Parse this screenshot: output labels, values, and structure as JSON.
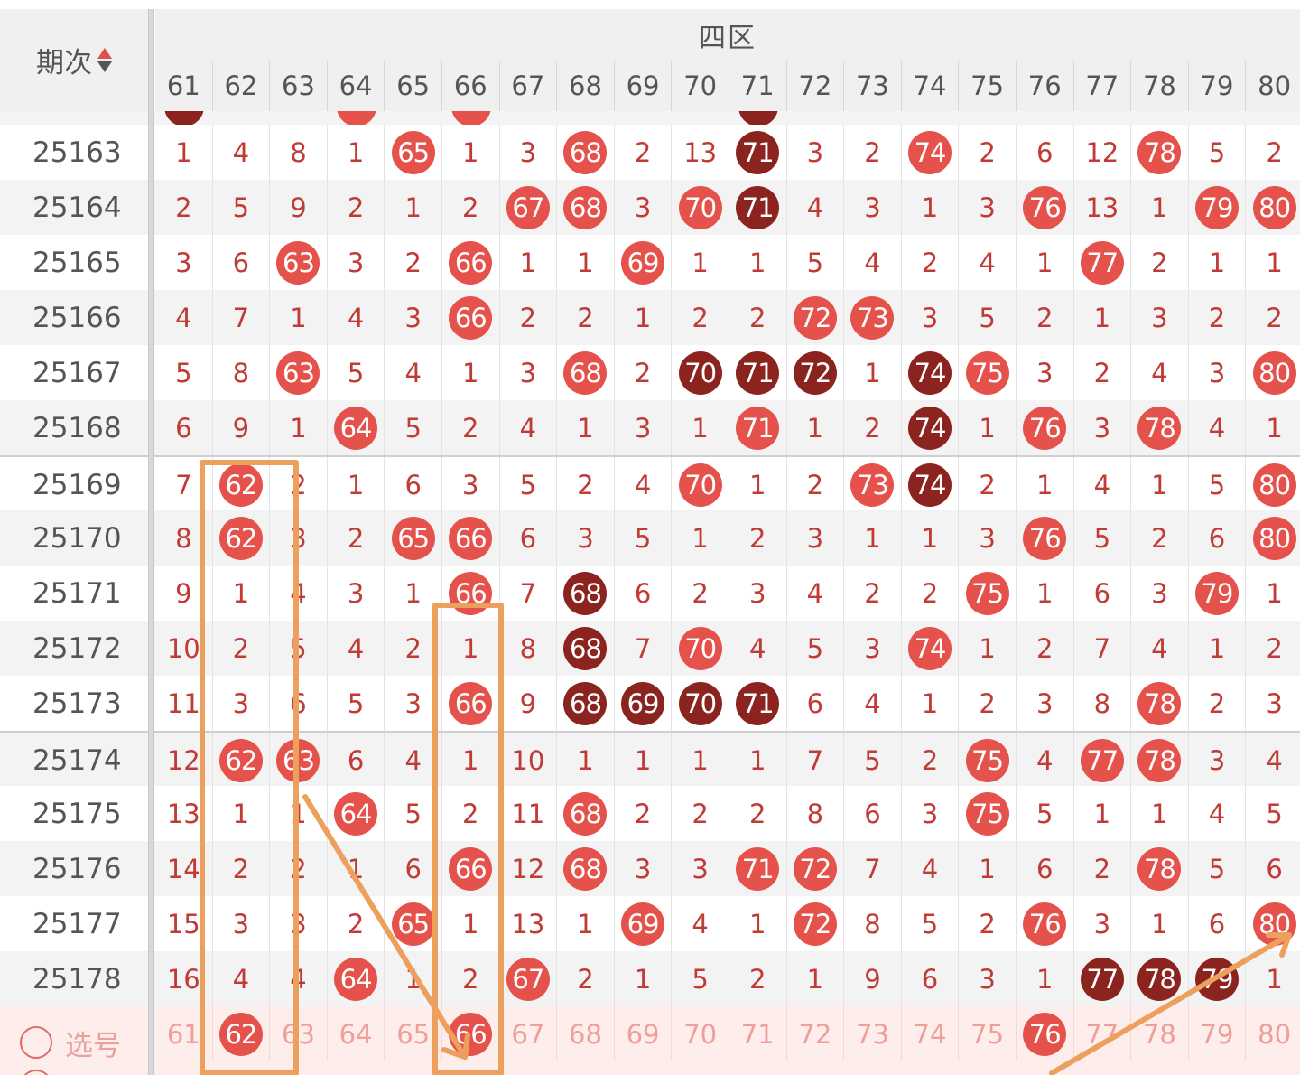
{
  "header": {
    "period_label": "期次",
    "sort_icon": "sort-up-down-icon",
    "zone_title": "四区"
  },
  "columns": [
    "61",
    "62",
    "63",
    "64",
    "65",
    "66",
    "67",
    "68",
    "69",
    "70",
    "71",
    "72",
    "73",
    "74",
    "75",
    "76",
    "77",
    "78",
    "79",
    "80"
  ],
  "peek_top": [
    {
      "col": 0,
      "style": "dark"
    },
    {
      "col": 3,
      "style": "red"
    },
    {
      "col": 5,
      "style": "red"
    },
    {
      "col": 10,
      "style": "dark"
    }
  ],
  "rows": [
    {
      "period": "25163",
      "cells": [
        "1",
        "4",
        "8",
        "1",
        {
          "v": "65",
          "s": "r"
        },
        "1",
        "3",
        {
          "v": "68",
          "s": "r"
        },
        "2",
        "13",
        {
          "v": "71",
          "s": "d"
        },
        "3",
        "2",
        {
          "v": "74",
          "s": "r"
        },
        "2",
        "6",
        "12",
        {
          "v": "78",
          "s": "r"
        },
        "5",
        "2"
      ]
    },
    {
      "period": "25164",
      "cells": [
        "2",
        "5",
        "9",
        "2",
        "1",
        "2",
        {
          "v": "67",
          "s": "r"
        },
        {
          "v": "68",
          "s": "r"
        },
        "3",
        {
          "v": "70",
          "s": "r"
        },
        {
          "v": "71",
          "s": "d"
        },
        "4",
        "3",
        "1",
        "3",
        {
          "v": "76",
          "s": "r"
        },
        "13",
        "1",
        {
          "v": "79",
          "s": "r"
        },
        {
          "v": "80",
          "s": "r"
        }
      ]
    },
    {
      "period": "25165",
      "cells": [
        "3",
        "6",
        {
          "v": "63",
          "s": "r"
        },
        "3",
        "2",
        {
          "v": "66",
          "s": "r"
        },
        "1",
        "1",
        {
          "v": "69",
          "s": "r"
        },
        "1",
        "1",
        "5",
        "4",
        "2",
        "4",
        "1",
        {
          "v": "77",
          "s": "r"
        },
        "2",
        "1",
        "1"
      ]
    },
    {
      "period": "25166",
      "cells": [
        "4",
        "7",
        "1",
        "4",
        "3",
        {
          "v": "66",
          "s": "r"
        },
        "2",
        "2",
        "1",
        "2",
        "2",
        {
          "v": "72",
          "s": "r"
        },
        {
          "v": "73",
          "s": "r"
        },
        "3",
        "5",
        "2",
        "1",
        "3",
        "2",
        "2"
      ]
    },
    {
      "period": "25167",
      "cells": [
        "5",
        "8",
        {
          "v": "63",
          "s": "r"
        },
        "5",
        "4",
        "1",
        "3",
        {
          "v": "68",
          "s": "r"
        },
        "2",
        {
          "v": "70",
          "s": "d"
        },
        {
          "v": "71",
          "s": "d"
        },
        {
          "v": "72",
          "s": "d"
        },
        "1",
        {
          "v": "74",
          "s": "d"
        },
        {
          "v": "75",
          "s": "r"
        },
        "3",
        "2",
        "4",
        "3",
        {
          "v": "80",
          "s": "r"
        }
      ]
    },
    {
      "period": "25168",
      "cells": [
        "6",
        "9",
        "1",
        {
          "v": "64",
          "s": "r"
        },
        "5",
        "2",
        "4",
        "1",
        "3",
        "1",
        {
          "v": "71",
          "s": "r"
        },
        "1",
        "2",
        {
          "v": "74",
          "s": "d"
        },
        "1",
        {
          "v": "76",
          "s": "r"
        },
        "3",
        {
          "v": "78",
          "s": "r"
        },
        "4",
        "1"
      ]
    },
    {
      "period": "25169",
      "cells": [
        "7",
        {
          "v": "62",
          "s": "r"
        },
        "2",
        "1",
        "6",
        "3",
        "5",
        "2",
        "4",
        {
          "v": "70",
          "s": "r"
        },
        "1",
        "2",
        {
          "v": "73",
          "s": "r"
        },
        {
          "v": "74",
          "s": "d"
        },
        "2",
        "1",
        "4",
        "1",
        "5",
        {
          "v": "80",
          "s": "r"
        }
      ]
    },
    {
      "period": "25170",
      "cells": [
        "8",
        {
          "v": "62",
          "s": "r"
        },
        "3",
        "2",
        {
          "v": "65",
          "s": "r"
        },
        {
          "v": "66",
          "s": "r"
        },
        "6",
        "3",
        "5",
        "1",
        "2",
        "3",
        "1",
        "1",
        "3",
        {
          "v": "76",
          "s": "r"
        },
        "5",
        "2",
        "6",
        {
          "v": "80",
          "s": "r"
        }
      ]
    },
    {
      "period": "25171",
      "cells": [
        "9",
        "1",
        "4",
        "3",
        "1",
        {
          "v": "66",
          "s": "r"
        },
        "7",
        {
          "v": "68",
          "s": "d"
        },
        "6",
        "2",
        "3",
        "4",
        "2",
        "2",
        {
          "v": "75",
          "s": "r"
        },
        "1",
        "6",
        "3",
        {
          "v": "79",
          "s": "r"
        },
        "1"
      ]
    },
    {
      "period": "25172",
      "cells": [
        "10",
        "2",
        "5",
        "4",
        "2",
        "1",
        "8",
        {
          "v": "68",
          "s": "d"
        },
        "7",
        {
          "v": "70",
          "s": "r"
        },
        "4",
        "5",
        "3",
        {
          "v": "74",
          "s": "r"
        },
        "1",
        "2",
        "7",
        "4",
        "1",
        "2"
      ]
    },
    {
      "period": "25173",
      "cells": [
        "11",
        "3",
        "6",
        "5",
        "3",
        {
          "v": "66",
          "s": "r"
        },
        "9",
        {
          "v": "68",
          "s": "d"
        },
        {
          "v": "69",
          "s": "d"
        },
        {
          "v": "70",
          "s": "d"
        },
        {
          "v": "71",
          "s": "d"
        },
        "6",
        "4",
        "1",
        "2",
        "3",
        "8",
        {
          "v": "78",
          "s": "r"
        },
        "2",
        "3"
      ]
    },
    {
      "period": "25174",
      "cells": [
        "12",
        {
          "v": "62",
          "s": "r"
        },
        {
          "v": "63",
          "s": "r"
        },
        "6",
        "4",
        "1",
        "10",
        "1",
        "1",
        "1",
        "1",
        "7",
        "5",
        "2",
        {
          "v": "75",
          "s": "r"
        },
        "4",
        {
          "v": "77",
          "s": "r"
        },
        {
          "v": "78",
          "s": "r"
        },
        "3",
        "4"
      ]
    },
    {
      "period": "25175",
      "cells": [
        "13",
        "1",
        "1",
        {
          "v": "64",
          "s": "r"
        },
        "5",
        "2",
        "11",
        {
          "v": "68",
          "s": "r"
        },
        "2",
        "2",
        "2",
        "8",
        "6",
        "3",
        {
          "v": "75",
          "s": "r"
        },
        "5",
        "1",
        "1",
        "4",
        "5"
      ]
    },
    {
      "period": "25176",
      "cells": [
        "14",
        "2",
        "2",
        "1",
        "6",
        {
          "v": "66",
          "s": "r"
        },
        "12",
        {
          "v": "68",
          "s": "r"
        },
        "3",
        "3",
        {
          "v": "71",
          "s": "r"
        },
        {
          "v": "72",
          "s": "r"
        },
        "7",
        "4",
        "1",
        "6",
        "2",
        {
          "v": "78",
          "s": "r"
        },
        "5",
        "6"
      ]
    },
    {
      "period": "25177",
      "cells": [
        "15",
        "3",
        "3",
        "2",
        {
          "v": "65",
          "s": "r"
        },
        "1",
        "13",
        "1",
        {
          "v": "69",
          "s": "r"
        },
        "4",
        "1",
        {
          "v": "72",
          "s": "r"
        },
        "8",
        "5",
        "2",
        {
          "v": "76",
          "s": "r"
        },
        "3",
        "1",
        "6",
        {
          "v": "80",
          "s": "r"
        }
      ]
    },
    {
      "period": "25178",
      "cells": [
        "16",
        "4",
        "4",
        {
          "v": "64",
          "s": "r"
        },
        "1",
        "2",
        {
          "v": "67",
          "s": "r"
        },
        "2",
        "1",
        "5",
        "2",
        "1",
        "9",
        "6",
        "3",
        "1",
        {
          "v": "77",
          "s": "d"
        },
        {
          "v": "78",
          "s": "d"
        },
        {
          "v": "79",
          "s": "d"
        },
        "1"
      ]
    }
  ],
  "pick_row": {
    "label": "选号",
    "radio_icon": "radio-empty-icon",
    "cells": [
      "61",
      {
        "v": "62",
        "s": "r"
      },
      "63",
      "64",
      "65",
      {
        "v": "66",
        "s": "r"
      },
      "67",
      "68",
      "69",
      "70",
      "71",
      "72",
      "73",
      "74",
      "75",
      {
        "v": "76",
        "s": "r"
      },
      "77",
      "78",
      "79",
      "80"
    ]
  },
  "colors": {
    "ball_red": "#e5514b",
    "ball_dark": "#8b231f",
    "number_text": "#c03b36",
    "annotation_orange": "#eda05e"
  }
}
